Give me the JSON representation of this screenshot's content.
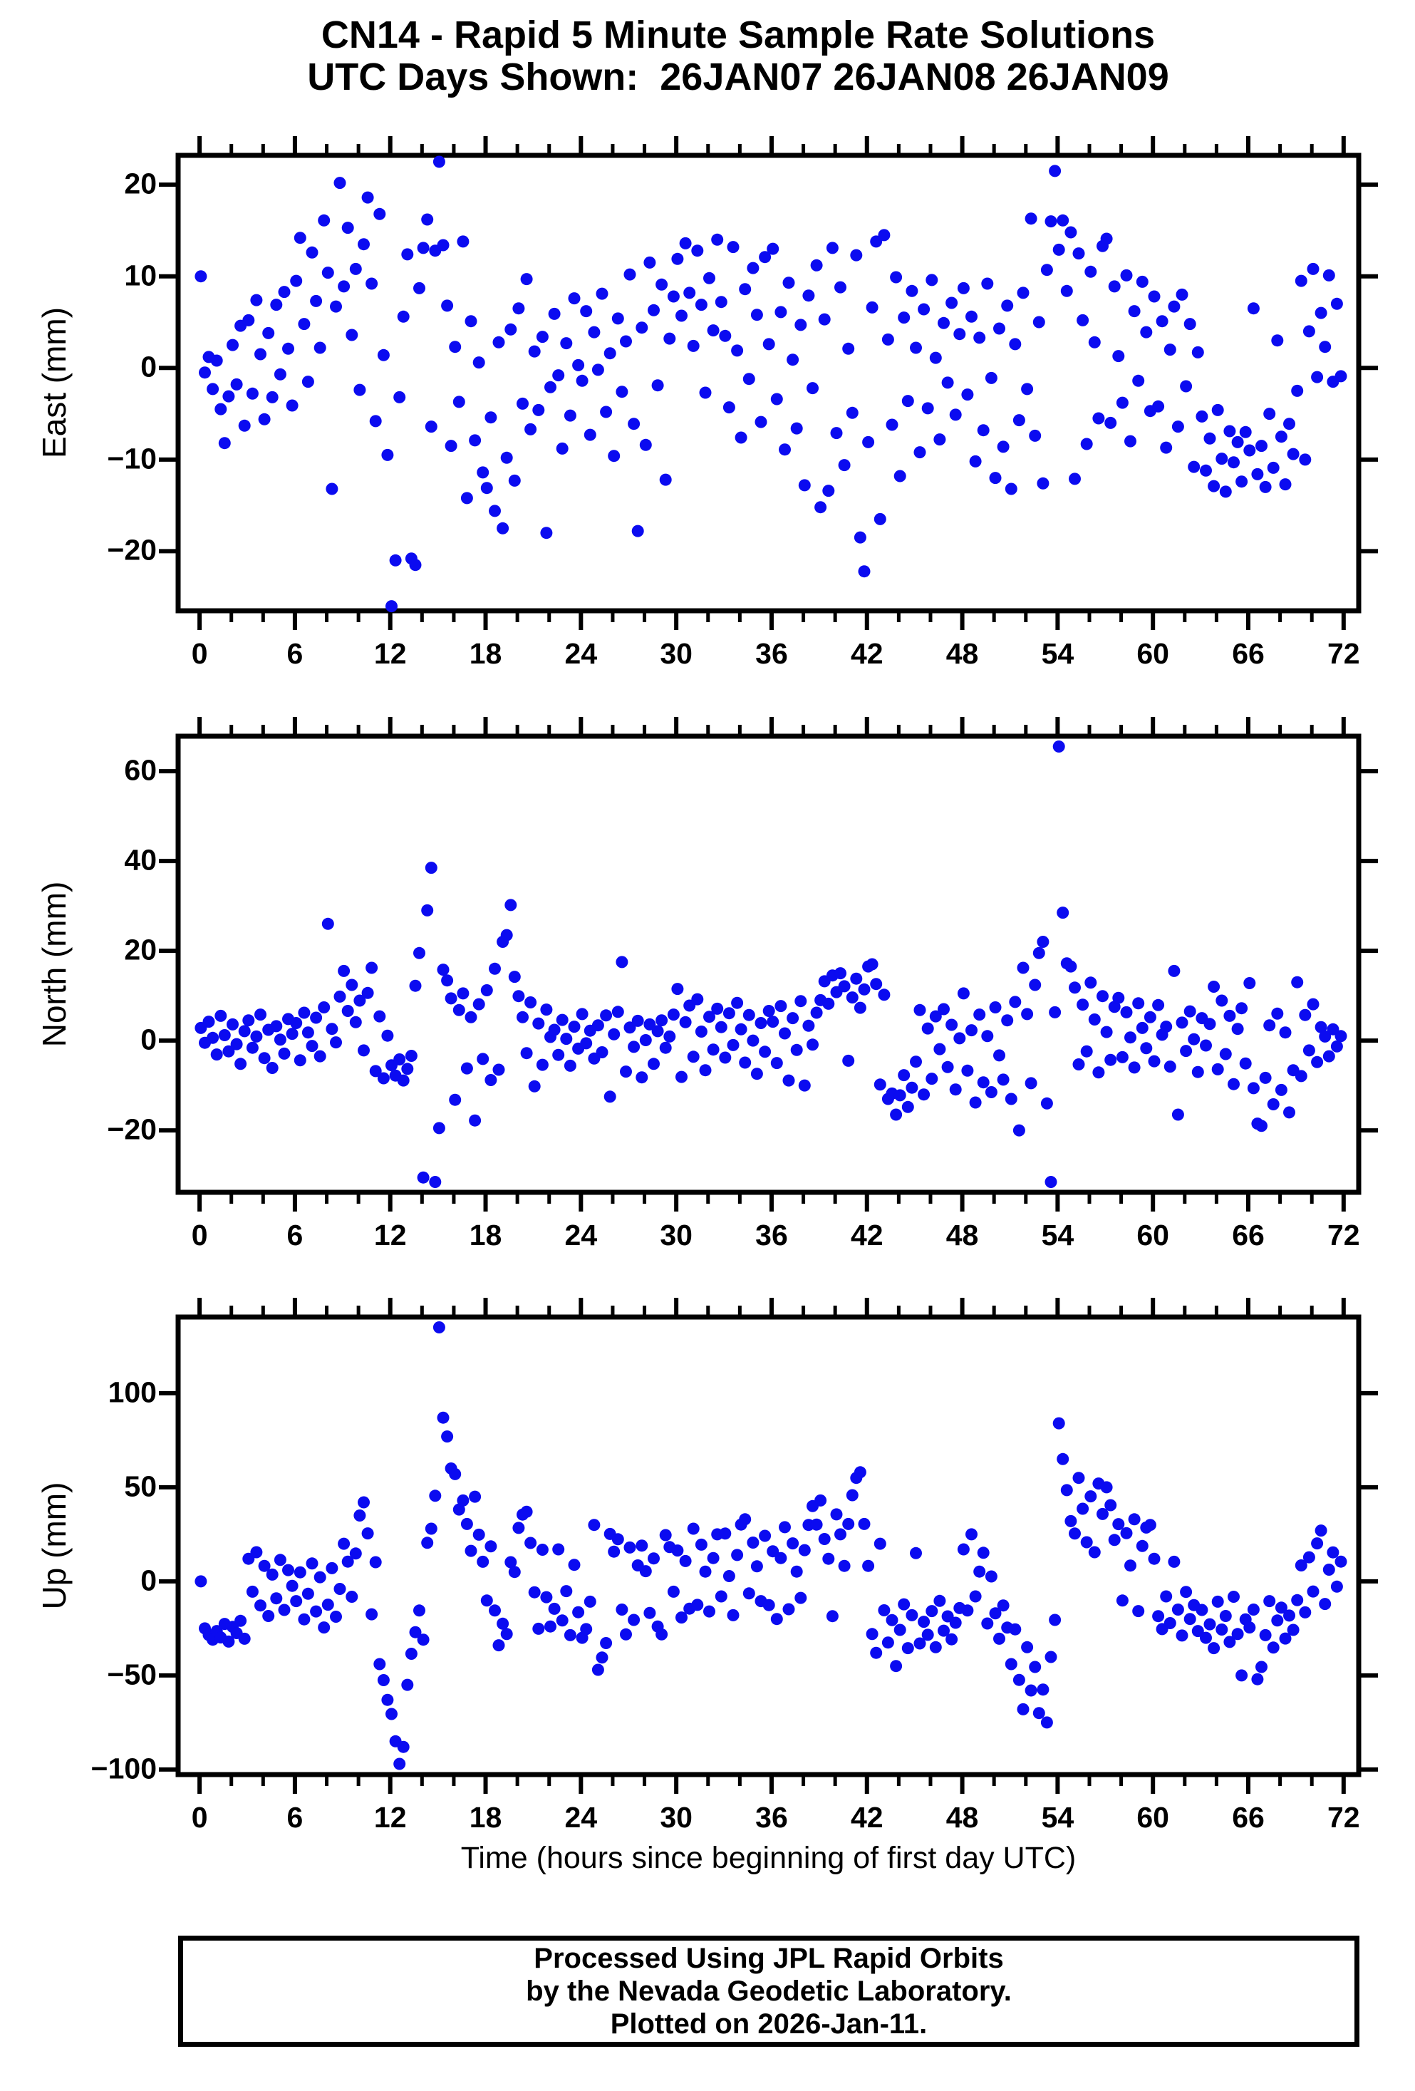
{
  "title": {
    "line1": "CN14 - Rapid 5 Minute Sample Rate Solutions",
    "line2": "UTC Days Shown:  26JAN07 26JAN08 26JAN09"
  },
  "footer": {
    "line1": "Processed Using JPL Rapid Orbits",
    "line2": "by the Nevada Geodetic Laboratory.",
    "line3": "Plotted on 2026-Jan-11."
  },
  "point_color": "#0b0bf0",
  "frame_color": "#000000",
  "axis": {
    "xlabel": "Time (hours since beginning of first day UTC)",
    "xlim": [
      -1.35,
      72.95
    ],
    "xticks": [
      0,
      6,
      12,
      18,
      24,
      30,
      36,
      42,
      48,
      54,
      60,
      66,
      72
    ],
    "xminor": 2
  },
  "chart_data": [
    {
      "type": "scatter",
      "name": "East",
      "ylabel": "East (mm)",
      "ylim": [
        -26.5,
        23.2
      ],
      "yticks": [
        -20,
        -10,
        0,
        10,
        20
      ],
      "x_start": 0.08,
      "x_step": 0.25,
      "values": [
        10.0,
        -0.5,
        1.2,
        -2.3,
        0.8,
        -4.5,
        -8.2,
        -3.1,
        2.5,
        -1.8,
        4.6,
        -6.3,
        5.2,
        -2.8,
        7.4,
        1.5,
        -5.6,
        3.8,
        -3.2,
        6.9,
        -0.7,
        8.3,
        2.1,
        -4.1,
        9.5,
        14.2,
        4.8,
        -1.5,
        12.6,
        7.3,
        2.2,
        16.1,
        10.4,
        -13.2,
        6.7,
        20.2,
        8.9,
        15.3,
        3.6,
        10.8,
        -2.4,
        13.5,
        18.6,
        9.2,
        -5.8,
        16.8,
        1.4,
        -9.5,
        -26.0,
        -21.0,
        -3.2,
        5.6,
        12.4,
        -20.8,
        -21.5,
        8.7,
        13.1,
        16.2,
        -6.4,
        12.8,
        22.5,
        13.4,
        6.8,
        -8.5,
        2.3,
        -3.7,
        13.8,
        -14.2,
        5.1,
        -7.9,
        0.6,
        -11.4,
        -13.1,
        -5.4,
        -15.6,
        2.8,
        -17.5,
        -9.8,
        4.2,
        -12.3,
        6.5,
        -3.9,
        9.7,
        -6.7,
        1.8,
        -4.6,
        3.4,
        -18.0,
        -2.1,
        5.9,
        -0.8,
        -8.8,
        2.7,
        -5.2,
        7.6,
        0.3,
        -1.4,
        6.2,
        -7.3,
        3.9,
        -0.2,
        8.1,
        -4.8,
        1.6,
        -9.6,
        5.4,
        -2.6,
        2.9,
        10.2,
        -6.1,
        -17.8,
        4.4,
        -8.4,
        11.5,
        6.3,
        -1.9,
        9.1,
        -12.2,
        3.2,
        7.8,
        11.9,
        5.7,
        13.6,
        8.2,
        2.4,
        12.8,
        6.9,
        -2.7,
        9.8,
        4.1,
        14.0,
        7.2,
        3.5,
        -4.3,
        13.2,
        1.9,
        -7.6,
        8.6,
        -1.2,
        10.9,
        5.8,
        -5.9,
        12.1,
        2.6,
        13.0,
        -3.4,
        6.1,
        -8.9,
        9.3,
        0.9,
        -6.6,
        4.7,
        -12.8,
        7.9,
        -2.2,
        11.2,
        -15.2,
        5.3,
        -13.4,
        13.1,
        -7.1,
        8.8,
        -10.6,
        2.1,
        -4.9,
        12.3,
        -18.5,
        -22.2,
        -8.1,
        6.6,
        13.8,
        -16.5,
        14.5,
        3.1,
        -6.2,
        9.9,
        -11.8,
        5.5,
        -3.6,
        8.4,
        2.2,
        -9.2,
        6.4,
        -4.4,
        9.6,
        1.1,
        -7.8,
        4.9,
        -1.6,
        7.1,
        -5.1,
        3.7,
        8.7,
        -2.9,
        5.6,
        -10.2,
        3.3,
        -6.8,
        9.2,
        -1.1,
        -12.0,
        4.3,
        -8.6,
        6.8,
        -13.2,
        2.6,
        -5.7,
        8.2,
        -2.3,
        16.3,
        -7.4,
        5.0,
        -12.6,
        10.7,
        16.0,
        21.5,
        12.9,
        16.1,
        8.4,
        14.8,
        -12.1,
        12.5,
        5.2,
        -8.3,
        10.5,
        2.8,
        -5.5,
        13.3,
        14.1,
        -6.0,
        8.9,
        1.3,
        -3.8,
        10.1,
        -8.0,
        6.2,
        -1.4,
        9.4,
        3.9,
        -4.7,
        7.8,
        -4.2,
        5.1,
        -8.7,
        2.0,
        6.7,
        -6.4,
        8.0,
        -2.0,
        4.8,
        -10.8,
        1.7,
        -5.3,
        -11.2,
        -7.7,
        -12.9,
        -4.6,
        -9.9,
        -13.5,
        -6.9,
        -10.3,
        -8.1,
        -12.4,
        -7.0,
        -9.0,
        6.5,
        -11.6,
        -8.5,
        -13.0,
        -5.0,
        -10.9,
        3.0,
        -7.5,
        -12.7,
        -6.1,
        -9.4,
        -2.5,
        9.5,
        -10.0,
        4.0,
        10.8,
        -1.0,
        6.0,
        2.3,
        10.1,
        -1.5,
        7.0,
        -0.9
      ]
    },
    {
      "type": "scatter",
      "name": "North",
      "ylabel": "North (mm)",
      "ylim": [
        -33.8,
        67.8
      ],
      "yticks": [
        -20,
        0,
        20,
        40,
        60
      ],
      "x_start": 0.08,
      "x_step": 0.25,
      "values": [
        2.8,
        -0.5,
        4.2,
        0.6,
        -3.1,
        5.5,
        1.2,
        -2.4,
        3.6,
        -0.8,
        -5.2,
        2.1,
        4.5,
        -1.6,
        0.9,
        5.8,
        -3.9,
        2.4,
        -6.1,
        3.2,
        0.2,
        -2.9,
        4.8,
        1.5,
        3.9,
        -4.4,
        6.2,
        1.8,
        -1.2,
        5.1,
        -3.5,
        7.4,
        26.0,
        2.6,
        -0.4,
        9.8,
        15.5,
        6.6,
        12.4,
        4.1,
        8.9,
        -2.2,
        10.6,
        16.2,
        -6.8,
        5.4,
        -8.4,
        1.1,
        -5.5,
        -7.8,
        -4.2,
        -8.9,
        -6.3,
        -3.4,
        12.2,
        19.5,
        -30.5,
        29.0,
        38.5,
        -31.5,
        -19.5,
        15.8,
        13.4,
        9.4,
        -13.2,
        6.8,
        10.5,
        -6.2,
        5.2,
        -17.8,
        8.1,
        -4.1,
        11.2,
        -8.8,
        16.0,
        -6.5,
        22.0,
        23.5,
        30.2,
        14.2,
        9.9,
        5.2,
        -2.8,
        8.5,
        -10.2,
        3.8,
        -5.4,
        6.9,
        0.8,
        2.4,
        -3.2,
        4.6,
        0.4,
        -5.6,
        3.1,
        -1.8,
        5.9,
        -0.6,
        2.2,
        -4.0,
        3.4,
        -2.6,
        5.6,
        -12.5,
        1.4,
        6.4,
        17.5,
        -6.9,
        2.9,
        -1.4,
        4.4,
        -8.2,
        0.1,
        3.6,
        -5.2,
        2.1,
        4.5,
        -1.6,
        0.9,
        5.8,
        11.5,
        -8.1,
        4.1,
        7.8,
        -3.6,
        9.2,
        2.0,
        -6.6,
        5.3,
        -2.0,
        7.1,
        3.0,
        -3.8,
        6.1,
        -1.0,
        8.4,
        2.5,
        -4.9,
        5.7,
        0.0,
        -7.4,
        3.9,
        -2.5,
        6.6,
        4.2,
        -5.0,
        7.7,
        1.6,
        -8.9,
        5.0,
        -2.1,
        8.8,
        -10.0,
        3.3,
        -0.9,
        6.2,
        9.0,
        13.2,
        8.2,
        14.5,
        10.8,
        15.0,
        12.1,
        -4.5,
        9.6,
        13.8,
        7.3,
        11.4,
        16.5,
        17.0,
        12.6,
        -9.8,
        10.2,
        -13.0,
        -11.8,
        -16.5,
        -12.2,
        -7.7,
        -14.8,
        -10.5,
        -4.7,
        6.8,
        -12.0,
        2.7,
        -8.5,
        5.4,
        -1.9,
        7.0,
        -5.9,
        3.5,
        -10.9,
        0.5,
        10.5,
        -6.7,
        2.3,
        -13.8,
        5.8,
        -9.3,
        1.0,
        -11.5,
        7.4,
        -3.3,
        -8.7,
        4.5,
        -13.0,
        8.6,
        -20.0,
        16.2,
        5.9,
        -9.5,
        12.4,
        19.5,
        22.0,
        -14.0,
        -31.5,
        6.3,
        65.5,
        28.5,
        17.2,
        16.5,
        11.8,
        -5.3,
        8.0,
        -2.4,
        12.9,
        4.7,
        -7.1,
        9.9,
        1.9,
        -4.3,
        7.5,
        9.5,
        -3.7,
        6.3,
        0.7,
        -6.0,
        8.3,
        2.8,
        -1.7,
        5.2,
        -4.6,
        7.9,
        1.3,
        3.1,
        -5.8,
        15.5,
        -16.5,
        4.0,
        -2.3,
        6.5,
        0.3,
        -7.0,
        5.0,
        -1.1,
        3.7,
        12.0,
        -6.4,
        8.9,
        -3.0,
        5.5,
        -9.7,
        2.6,
        7.2,
        -5.1,
        12.8,
        -10.6,
        -18.5,
        -19.0,
        -8.3,
        3.4,
        -14.2,
        6.0,
        -11.0,
        1.8,
        -16.0,
        -6.6,
        13.0,
        -7.9,
        5.7,
        -2.2,
        8.1,
        -4.8,
        3.0,
        0.9,
        -3.5,
        2.5,
        -1.3,
        1.0
      ]
    },
    {
      "type": "scatter",
      "name": "Up",
      "ylabel": "Up (mm)",
      "ylim": [
        -102.7,
        140.5
      ],
      "yticks": [
        -100,
        -50,
        0,
        50,
        100
      ],
      "x_start": 0.08,
      "x_step": 0.25,
      "values": [
        0.0,
        -25.0,
        -28.5,
        -31.0,
        -26.4,
        -29.8,
        -22.6,
        -32.0,
        -24.2,
        -27.5,
        -21.0,
        -30.5,
        12.0,
        -5.5,
        15.5,
        -12.8,
        8.2,
        -18.4,
        3.6,
        -9.0,
        11.4,
        -15.2,
        6.0,
        -2.4,
        -10.5,
        4.8,
        -20.2,
        -6.6,
        9.5,
        -16.0,
        2.2,
        -24.5,
        -12.4,
        7.0,
        -18.8,
        -4.0,
        20.0,
        10.5,
        -8.2,
        14.8,
        35.0,
        42.0,
        25.5,
        -17.5,
        10.2,
        -44.0,
        -52.5,
        -63.0,
        -70.5,
        -85.0,
        -97.0,
        -88.0,
        -55.0,
        -38.5,
        -27.0,
        -15.5,
        -31.0,
        20.5,
        28.0,
        45.5,
        135.0,
        87.0,
        77.0,
        60.0,
        57.0,
        38.2,
        43.0,
        30.5,
        16.2,
        45.0,
        24.8,
        10.4,
        -10.2,
        18.6,
        -15.5,
        -34.0,
        -22.5,
        -28.0,
        10.2,
        5.0,
        28.4,
        35.5,
        37.0,
        20.4,
        -5.8,
        -25.2,
        16.8,
        -8.4,
        -24.0,
        -14.6,
        17.0,
        -20.8,
        -5.2,
        -28.6,
        8.8,
        -16.4,
        -30.0,
        -25.4,
        -10.8,
        30.0,
        -47.0,
        -40.5,
        -32.8,
        25.2,
        15.8,
        22.4,
        -15.0,
        -28.2,
        18.0,
        -20.5,
        8.5,
        19.0,
        5.4,
        -16.8,
        12.2,
        -24.0,
        -28.2,
        24.6,
        18.2,
        -5.5,
        16.4,
        -19.2,
        10.8,
        -14.5,
        28.0,
        -12.5,
        19.5,
        5.2,
        -16.0,
        12.4,
        25.0,
        -8.0,
        25.4,
        2.8,
        -18.0,
        14.0,
        30.2,
        33.0,
        -6.4,
        20.6,
        8.0,
        -10.5,
        24.2,
        -12.6,
        16.0,
        -20.0,
        12.4,
        28.8,
        -14.8,
        20.2,
        5.2,
        -8.8,
        16.6,
        30.0,
        40.0,
        30.2,
        43.0,
        22.5,
        12.0,
        -18.5,
        35.6,
        25.0,
        8.2,
        30.5,
        45.8,
        55.0,
        58.0,
        30.5,
        8.2,
        -28.0,
        -38.0,
        20.0,
        -15.4,
        -32.5,
        -20.6,
        -45.0,
        -25.8,
        -12.2,
        -35.5,
        -18.0,
        15.0,
        -33.0,
        -21.5,
        -28.4,
        -15.8,
        -35.0,
        -10.4,
        -26.2,
        -18.6,
        -30.8,
        -22.0,
        -14.2,
        17.0,
        -15.5,
        25.0,
        -8.0,
        5.2,
        15.2,
        -22.4,
        2.6,
        -17.0,
        -30.5,
        -12.8,
        -24.6,
        -44.0,
        -25.5,
        -52.4,
        -68.0,
        -35.0,
        -58.0,
        -45.5,
        -70.0,
        -57.5,
        -75.0,
        -40.2,
        -20.5,
        84.0,
        65.0,
        48.5,
        32.0,
        25.4,
        55.0,
        38.6,
        20.8,
        45.2,
        15.5,
        52.0,
        35.8,
        50.0,
        40.5,
        22.0,
        30.4,
        -10.2,
        25.6,
        8.4,
        33.0,
        -15.8,
        18.8,
        28.6,
        30.0,
        12.0,
        -18.5,
        -25.4,
        -8.0,
        -22.2,
        10.4,
        -15.0,
        -28.8,
        -5.6,
        -20.0,
        -12.6,
        -26.4,
        -15.2,
        -30.0,
        -22.8,
        -35.5,
        -10.8,
        -25.6,
        -18.4,
        -32.2,
        -8.2,
        -28.0,
        -50.0,
        -20.2,
        -24.5,
        -15.0,
        -52.0,
        -45.5,
        -28.6,
        -10.5,
        -35.2,
        -20.8,
        -14.0,
        -30.4,
        -18.2,
        -25.8,
        -10.0,
        8.5,
        -16.5,
        12.8,
        -5.4,
        20.2,
        27.0,
        -12.0,
        6.2,
        15.4,
        -2.8,
        10.5
      ]
    }
  ]
}
